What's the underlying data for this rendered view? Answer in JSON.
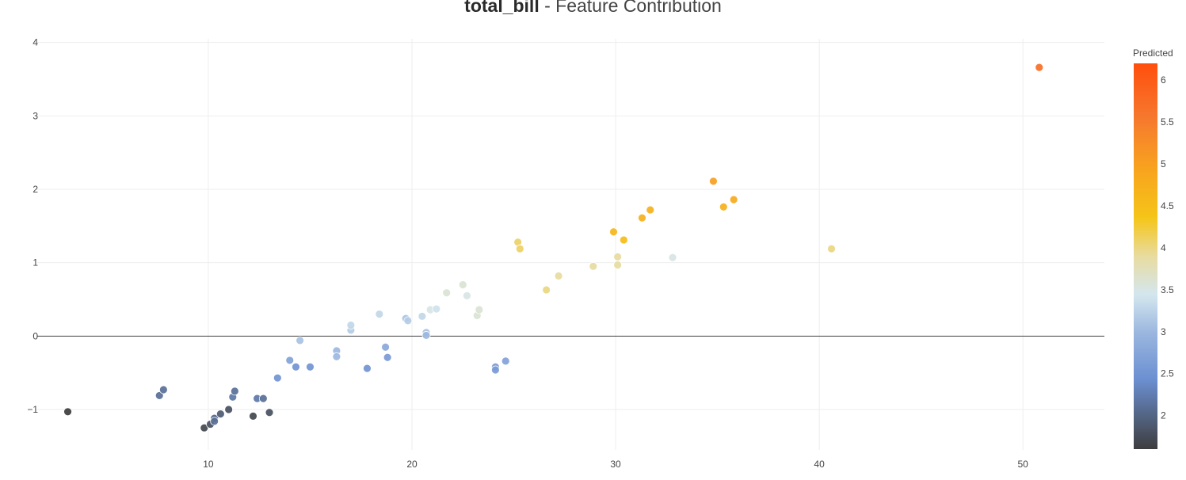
{
  "chart_data": {
    "type": "scatter",
    "title_bold": "total_bill",
    "title_rest": " - Feature Contribution",
    "xlabel": "",
    "ylabel": "",
    "xlim": [
      1.6,
      54.0
    ],
    "ylim": [
      -1.55,
      4.05
    ],
    "xticks": [
      10,
      20,
      30,
      40,
      50
    ],
    "yticks": [
      -1,
      0,
      1,
      2,
      3,
      4
    ],
    "ytick_labels": [
      "−1",
      "0",
      "1",
      "2",
      "3",
      "4"
    ],
    "grid": true,
    "zero_line": true,
    "colorbar": {
      "title": "Predicted",
      "range": [
        1.6,
        6.2
      ],
      "ticks": [
        2,
        2.5,
        3,
        3.5,
        4,
        4.5,
        5,
        5.5,
        6
      ],
      "tick_labels": [
        "2",
        "2.5",
        "3",
        "3.5",
        "4",
        "4.5",
        "5",
        "5.5",
        "6"
      ],
      "stops": [
        [
          0.0,
          "#3d3d3d"
        ],
        [
          0.18,
          "#6b8fd1"
        ],
        [
          0.3,
          "#9ab6df"
        ],
        [
          0.4,
          "#d4e6ee"
        ],
        [
          0.5,
          "#e8dca0"
        ],
        [
          0.6,
          "#f5c518"
        ],
        [
          0.72,
          "#f8a51e"
        ],
        [
          0.86,
          "#f6782e"
        ],
        [
          1.0,
          "#ff4e0d"
        ]
      ]
    },
    "points": [
      {
        "x": 3.1,
        "y": -1.03,
        "c": 1.6
      },
      {
        "x": 7.6,
        "y": -0.81,
        "c": 2.1
      },
      {
        "x": 7.8,
        "y": -0.73,
        "c": 2.1
      },
      {
        "x": 9.8,
        "y": -1.25,
        "c": 1.7
      },
      {
        "x": 10.1,
        "y": -1.2,
        "c": 1.8
      },
      {
        "x": 10.3,
        "y": -1.12,
        "c": 2.0
      },
      {
        "x": 10.3,
        "y": -1.16,
        "c": 2.1
      },
      {
        "x": 10.6,
        "y": -1.06,
        "c": 1.9
      },
      {
        "x": 11.0,
        "y": -1.0,
        "c": 1.8
      },
      {
        "x": 11.2,
        "y": -0.83,
        "c": 2.2
      },
      {
        "x": 11.3,
        "y": -0.75,
        "c": 2.1
      },
      {
        "x": 12.2,
        "y": -1.09,
        "c": 1.7
      },
      {
        "x": 12.4,
        "y": -0.85,
        "c": 2.2
      },
      {
        "x": 12.7,
        "y": -0.85,
        "c": 2.1
      },
      {
        "x": 13.0,
        "y": -1.04,
        "c": 1.8
      },
      {
        "x": 13.4,
        "y": -0.57,
        "c": 2.5
      },
      {
        "x": 14.0,
        "y": -0.33,
        "c": 2.7
      },
      {
        "x": 14.3,
        "y": -0.42,
        "c": 2.5
      },
      {
        "x": 14.5,
        "y": -0.06,
        "c": 3.1
      },
      {
        "x": 15.0,
        "y": -0.42,
        "c": 2.5
      },
      {
        "x": 16.3,
        "y": -0.2,
        "c": 3.0
      },
      {
        "x": 16.3,
        "y": -0.28,
        "c": 3.0
      },
      {
        "x": 17.0,
        "y": 0.08,
        "c": 3.2
      },
      {
        "x": 17.0,
        "y": 0.15,
        "c": 3.3
      },
      {
        "x": 17.8,
        "y": -0.44,
        "c": 2.5
      },
      {
        "x": 18.4,
        "y": 0.3,
        "c": 3.3
      },
      {
        "x": 18.7,
        "y": -0.15,
        "c": 2.8
      },
      {
        "x": 18.8,
        "y": -0.29,
        "c": 2.6
      },
      {
        "x": 19.7,
        "y": 0.24,
        "c": 3.1
      },
      {
        "x": 19.8,
        "y": 0.21,
        "c": 3.2
      },
      {
        "x": 20.5,
        "y": 0.27,
        "c": 3.3
      },
      {
        "x": 20.7,
        "y": 0.05,
        "c": 3.1
      },
      {
        "x": 20.7,
        "y": 0.01,
        "c": 3.0
      },
      {
        "x": 20.9,
        "y": 0.36,
        "c": 3.5
      },
      {
        "x": 21.2,
        "y": 0.37,
        "c": 3.4
      },
      {
        "x": 21.7,
        "y": 0.59,
        "c": 3.6
      },
      {
        "x": 22.5,
        "y": 0.7,
        "c": 3.6
      },
      {
        "x": 22.7,
        "y": 0.55,
        "c": 3.5
      },
      {
        "x": 23.2,
        "y": 0.28,
        "c": 3.6
      },
      {
        "x": 23.3,
        "y": 0.36,
        "c": 3.6
      },
      {
        "x": 24.1,
        "y": -0.42,
        "c": 2.6
      },
      {
        "x": 24.1,
        "y": -0.46,
        "c": 2.6
      },
      {
        "x": 24.6,
        "y": -0.34,
        "c": 2.7
      },
      {
        "x": 25.2,
        "y": 1.28,
        "c": 4.1
      },
      {
        "x": 25.3,
        "y": 1.19,
        "c": 4.1
      },
      {
        "x": 26.6,
        "y": 0.63,
        "c": 4.0
      },
      {
        "x": 27.2,
        "y": 0.82,
        "c": 3.9
      },
      {
        "x": 28.9,
        "y": 0.95,
        "c": 3.9
      },
      {
        "x": 29.9,
        "y": 1.42,
        "c": 4.6
      },
      {
        "x": 30.1,
        "y": 0.97,
        "c": 3.9
      },
      {
        "x": 30.1,
        "y": 1.08,
        "c": 3.9
      },
      {
        "x": 30.4,
        "y": 1.31,
        "c": 4.5
      },
      {
        "x": 31.3,
        "y": 1.61,
        "c": 4.7
      },
      {
        "x": 31.7,
        "y": 1.72,
        "c": 4.7
      },
      {
        "x": 32.8,
        "y": 1.07,
        "c": 3.5
      },
      {
        "x": 34.8,
        "y": 2.11,
        "c": 5.0
      },
      {
        "x": 35.3,
        "y": 1.76,
        "c": 4.7
      },
      {
        "x": 35.8,
        "y": 1.86,
        "c": 4.8
      },
      {
        "x": 40.6,
        "y": 1.19,
        "c": 4.0
      },
      {
        "x": 50.8,
        "y": 3.66,
        "c": 5.7
      }
    ]
  }
}
